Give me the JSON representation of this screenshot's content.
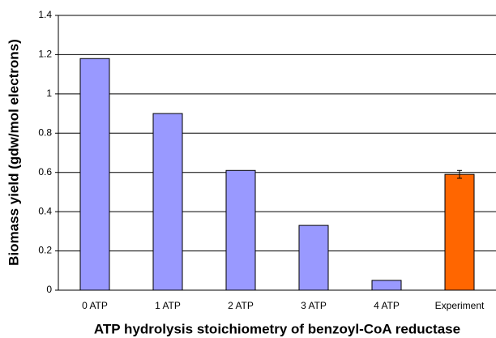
{
  "chart_data": {
    "type": "bar",
    "x_label": "ATP hydrolysis stoichiometry of benzoyl-CoA reductase",
    "y_label": "Biomass yield (gdw/mol electrons)",
    "categories": [
      "0 ATP",
      "1 ATP",
      "2 ATP",
      "3 ATP",
      "4 ATP",
      "Experiment"
    ],
    "values": [
      1.18,
      0.9,
      0.61,
      0.33,
      0.05,
      0.59
    ],
    "errors": [
      null,
      null,
      null,
      null,
      null,
      0.02
    ],
    "colors": [
      "#9999ff",
      "#9999ff",
      "#9999ff",
      "#9999ff",
      "#9999ff",
      "#ff6600"
    ],
    "ylim": [
      0,
      1.4
    ],
    "yticks": [
      0,
      0.2,
      0.4,
      0.6,
      0.8,
      1,
      1.2,
      1.4
    ],
    "grid": true
  }
}
